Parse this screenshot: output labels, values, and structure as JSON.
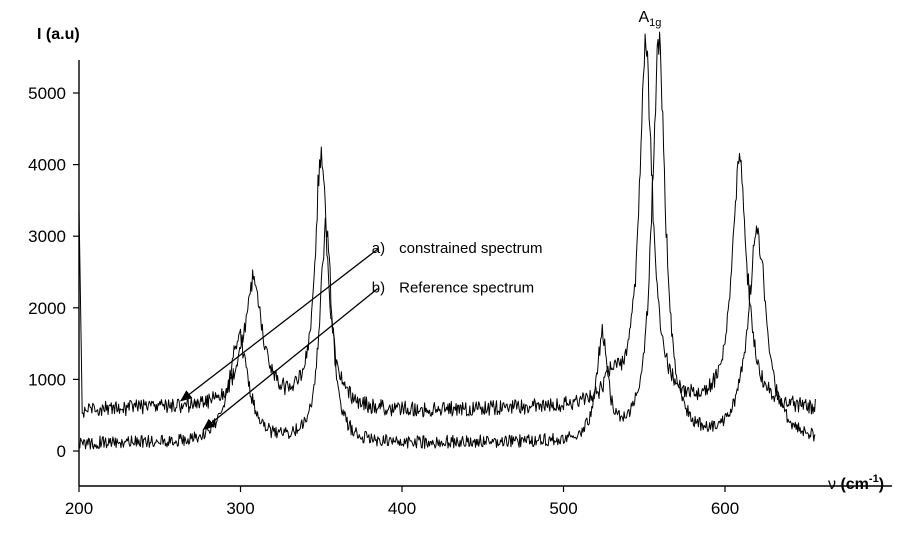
{
  "chart_data": {
    "type": "line",
    "ylabel": "I (a.u)",
    "xlabel_symbol": "ν",
    "xlabel_unit": "(cm",
    "xlabel_unit_sup": "-1",
    "xlabel_unit_close": ")",
    "xlim": [
      200,
      660
    ],
    "ylim": [
      -500,
      5600
    ],
    "x_ticks": [
      200,
      300,
      400,
      500,
      600
    ],
    "y_ticks": [
      0,
      1000,
      2000,
      3000,
      4000,
      5000
    ],
    "grid": false,
    "peak_label": {
      "main": "A",
      "sub": "1g",
      "x": 556
    },
    "series": [
      {
        "name": "constrained spectrum",
        "label_prefix": "a)",
        "baseline": 560,
        "noise": 110,
        "start_spike": 3400,
        "peaks": [
          {
            "x": 308,
            "height": 1800,
            "width": 7
          },
          {
            "x": 350,
            "height": 3750,
            "width": 4.5
          },
          {
            "x": 530,
            "height": 350,
            "width": 5
          },
          {
            "x": 551,
            "height": 5100,
            "width": 5
          },
          {
            "x": 609,
            "height": 3600,
            "width": 5.5
          }
        ],
        "arrow_from": [
          385,
          2820
        ],
        "arrow_to": [
          263,
          700
        ]
      },
      {
        "name": "Reference spectrum",
        "label_prefix": "b)",
        "baseline": 80,
        "noise": 90,
        "start_spike": 0,
        "peaks": [
          {
            "x": 299,
            "height": 1550,
            "width": 7
          },
          {
            "x": 353,
            "height": 3100,
            "width": 4.5
          },
          {
            "x": 524,
            "height": 1500,
            "width": 4
          },
          {
            "x": 559,
            "height": 5700,
            "width": 5
          },
          {
            "x": 620,
            "height": 2950,
            "width": 7
          }
        ],
        "arrow_from": [
          385,
          2270
        ],
        "arrow_to": [
          277,
          300
        ]
      }
    ]
  }
}
